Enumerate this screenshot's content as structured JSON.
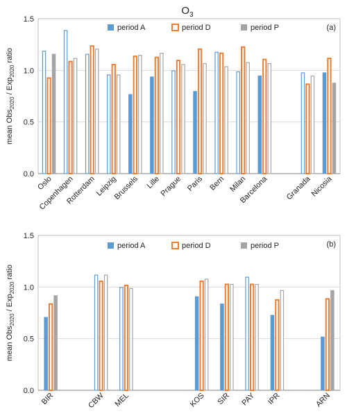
{
  "title_main": "O",
  "title_sub": "3",
  "colors": {
    "A": "#5b9bd5",
    "D": "#ed7d31",
    "P": "#a5a5a5"
  },
  "chart_data": [
    {
      "type": "bar",
      "panel_label": "(a)",
      "ylabel_prefix": "mean Obs",
      "ylabel_sub1": "2020",
      "ylabel_mid": " / Exp",
      "ylabel_sub2": "2020",
      "ylabel_suffix": " ratio",
      "ylim": [
        0,
        1.5
      ],
      "yticks": [
        "0.0",
        "0.5",
        "1.0",
        "1.5"
      ],
      "grid": true,
      "legend": [
        "period A",
        "period D",
        "period P"
      ],
      "legend_position": "top-right",
      "categories": [
        "Oslo",
        "Copenhagen",
        "Rotterdam",
        "Leipzig",
        "Brussels",
        "Lille",
        "Prague",
        "Paris",
        "Bern",
        "Milan",
        "Barcelona",
        "",
        "Granada",
        "Nicosia"
      ],
      "series": [
        {
          "name": "period A",
          "values": [
            1.19,
            1.39,
            1.16,
            0.96,
            0.77,
            0.94,
            1.0,
            0.8,
            1.18,
            0.99,
            0.95,
            null,
            0.98,
            0.98
          ],
          "filled": [
            false,
            false,
            false,
            false,
            true,
            true,
            false,
            true,
            false,
            false,
            true,
            false,
            false,
            true
          ]
        },
        {
          "name": "period D",
          "values": [
            0.93,
            1.09,
            1.24,
            1.06,
            1.14,
            1.13,
            1.1,
            1.21,
            1.17,
            1.23,
            1.11,
            null,
            0.87,
            1.12
          ],
          "filled": [
            false,
            false,
            false,
            false,
            false,
            false,
            false,
            false,
            false,
            false,
            false,
            false,
            false,
            false
          ]
        },
        {
          "name": "period P",
          "values": [
            1.16,
            1.12,
            1.21,
            0.96,
            1.15,
            1.17,
            1.06,
            1.07,
            1.04,
            1.08,
            1.07,
            null,
            0.95,
            0.88
          ],
          "filled": [
            true,
            false,
            false,
            false,
            false,
            false,
            false,
            false,
            false,
            false,
            false,
            false,
            false,
            true
          ]
        }
      ]
    },
    {
      "type": "bar",
      "panel_label": "(b)",
      "ylabel_prefix": "mean Obs",
      "ylabel_sub1": "2020",
      "ylabel_mid": " / Exp",
      "ylabel_sub2": "2020",
      "ylabel_suffix": " ratio",
      "ylim": [
        0,
        1.5
      ],
      "yticks": [
        "0.0",
        "0.5",
        "1.0",
        "1.5"
      ],
      "grid": true,
      "legend": [
        "period A",
        "period D",
        "period P"
      ],
      "legend_position": "top-right",
      "categories": [
        "BIR",
        "",
        "CBW",
        "MEL",
        "",
        "",
        "KOS",
        "SIR",
        "PAY",
        "IPR",
        "",
        "ARN"
      ],
      "series": [
        {
          "name": "period A",
          "values": [
            0.71,
            null,
            1.12,
            1.0,
            null,
            null,
            0.91,
            0.84,
            1.1,
            0.73,
            null,
            0.52
          ],
          "filled": [
            true,
            false,
            false,
            false,
            false,
            false,
            true,
            true,
            false,
            true,
            false,
            true
          ]
        },
        {
          "name": "period D",
          "values": [
            0.84,
            null,
            1.06,
            1.02,
            null,
            null,
            1.06,
            1.03,
            1.03,
            0.88,
            null,
            0.89
          ],
          "filled": [
            false,
            false,
            false,
            false,
            false,
            false,
            false,
            false,
            false,
            false,
            false,
            false
          ]
        },
        {
          "name": "period P",
          "values": [
            0.92,
            null,
            1.12,
            0.99,
            null,
            null,
            1.08,
            1.03,
            1.03,
            0.97,
            null,
            0.97
          ],
          "filled": [
            true,
            false,
            false,
            false,
            false,
            false,
            false,
            false,
            false,
            false,
            false,
            true
          ]
        }
      ]
    }
  ]
}
